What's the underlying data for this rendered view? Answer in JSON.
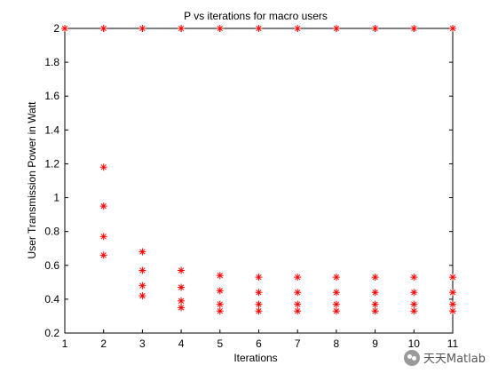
{
  "chart_data": {
    "type": "scatter",
    "title": "P vs iterations for macro users",
    "xlabel": "Iterations",
    "ylabel": "User Transmission Power in Watt",
    "xlim": [
      1,
      11
    ],
    "ylim": [
      0.2,
      2
    ],
    "x_ticks": [
      "1",
      "2",
      "3",
      "4",
      "5",
      "6",
      "7",
      "8",
      "9",
      "10",
      "11"
    ],
    "y_ticks": [
      "0.2",
      "0.4",
      "0.6",
      "0.8",
      "1",
      "1.2",
      "1.4",
      "1.6",
      "1.8",
      "2"
    ],
    "marker": "*",
    "marker_color": "#ff0000",
    "grid": false,
    "points": [
      {
        "x": 1,
        "y": 2
      },
      {
        "x": 2,
        "y": 2
      },
      {
        "x": 2,
        "y": 1.18
      },
      {
        "x": 2,
        "y": 0.95
      },
      {
        "x": 2,
        "y": 0.77
      },
      {
        "x": 2,
        "y": 0.66
      },
      {
        "x": 3,
        "y": 2
      },
      {
        "x": 3,
        "y": 0.68
      },
      {
        "x": 3,
        "y": 0.57
      },
      {
        "x": 3,
        "y": 0.48
      },
      {
        "x": 3,
        "y": 0.42
      },
      {
        "x": 4,
        "y": 2
      },
      {
        "x": 4,
        "y": 0.57
      },
      {
        "x": 4,
        "y": 0.47
      },
      {
        "x": 4,
        "y": 0.39
      },
      {
        "x": 4,
        "y": 0.35
      },
      {
        "x": 5,
        "y": 2
      },
      {
        "x": 5,
        "y": 0.54
      },
      {
        "x": 5,
        "y": 0.45
      },
      {
        "x": 5,
        "y": 0.37
      },
      {
        "x": 5,
        "y": 0.33
      },
      {
        "x": 6,
        "y": 2
      },
      {
        "x": 6,
        "y": 0.53
      },
      {
        "x": 6,
        "y": 0.44
      },
      {
        "x": 6,
        "y": 0.37
      },
      {
        "x": 6,
        "y": 0.33
      },
      {
        "x": 7,
        "y": 2
      },
      {
        "x": 7,
        "y": 0.53
      },
      {
        "x": 7,
        "y": 0.44
      },
      {
        "x": 7,
        "y": 0.37
      },
      {
        "x": 7,
        "y": 0.33
      },
      {
        "x": 8,
        "y": 2
      },
      {
        "x": 8,
        "y": 0.53
      },
      {
        "x": 8,
        "y": 0.44
      },
      {
        "x": 8,
        "y": 0.37
      },
      {
        "x": 8,
        "y": 0.33
      },
      {
        "x": 9,
        "y": 2
      },
      {
        "x": 9,
        "y": 0.53
      },
      {
        "x": 9,
        "y": 0.44
      },
      {
        "x": 9,
        "y": 0.37
      },
      {
        "x": 9,
        "y": 0.33
      },
      {
        "x": 10,
        "y": 2
      },
      {
        "x": 10,
        "y": 0.53
      },
      {
        "x": 10,
        "y": 0.44
      },
      {
        "x": 10,
        "y": 0.37
      },
      {
        "x": 10,
        "y": 0.33
      },
      {
        "x": 11,
        "y": 2
      },
      {
        "x": 11,
        "y": 0.53
      },
      {
        "x": 11,
        "y": 0.44
      },
      {
        "x": 11,
        "y": 0.37
      },
      {
        "x": 11,
        "y": 0.33
      }
    ]
  },
  "watermark": {
    "text": "天天Matlab",
    "icon": "wechat-icon"
  }
}
